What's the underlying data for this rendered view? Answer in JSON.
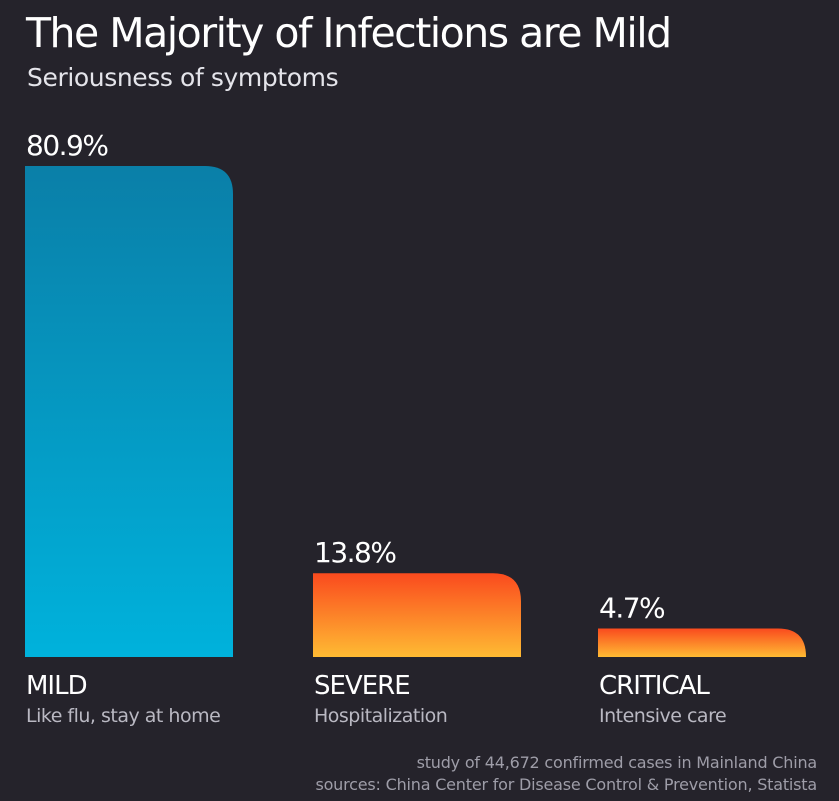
{
  "chart_data": {
    "type": "bar",
    "title": "The Majority of Infections are Mild",
    "subtitle": "Seriousness of symptoms",
    "categories": [
      "MILD",
      "SEVERE",
      "CRITICAL"
    ],
    "descriptions": [
      "Like flu, stay at home",
      "Hospitalization",
      "Intensive care"
    ],
    "values": [
      80.9,
      13.8,
      4.7
    ],
    "value_labels": [
      "80.9%",
      "13.8%",
      "4.7%"
    ],
    "unit": "%",
    "ylim": [
      0,
      80.9
    ],
    "grid": false,
    "bar_colors": [
      {
        "top": "#0a7fa8",
        "bottom": "#00b2dc"
      },
      {
        "top": "#fa4a1e",
        "bottom": "#ffbb33"
      },
      {
        "top": "#fa4a1e",
        "bottom": "#ffbb33"
      }
    ],
    "notes": [
      "study of 44,672 confirmed cases in Mainland China",
      "sources: China Center for Disease Control & Prevention, Statista"
    ]
  },
  "colors": {
    "background": "#25232b",
    "text": "#ffffff",
    "muted": "#b9b8c2"
  }
}
